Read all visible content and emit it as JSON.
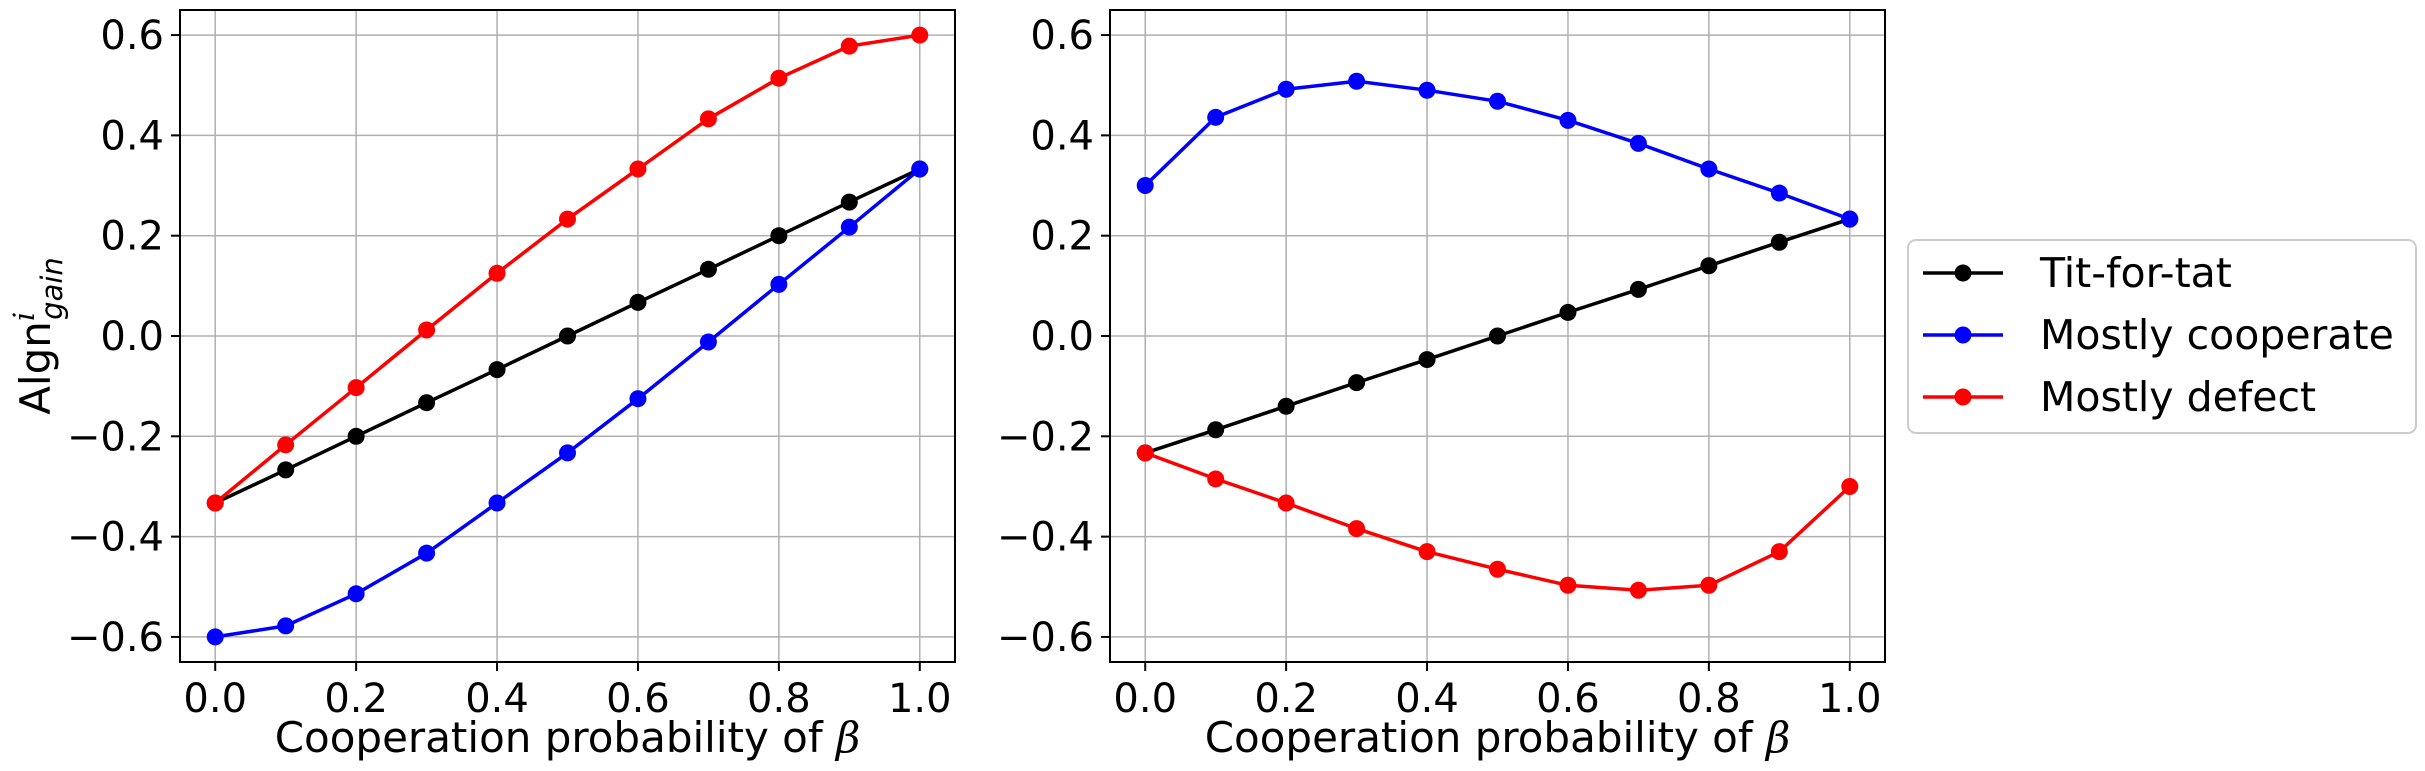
{
  "chart_data": [
    {
      "type": "line",
      "xlabel": "Cooperation probability of β",
      "ylabel": "Algn",
      "ylabel_sup": "i",
      "ylabel_sub": "gain",
      "xlim": [
        -0.05,
        1.05
      ],
      "ylim": [
        -0.65,
        0.65
      ],
      "xticks": [
        0.0,
        0.2,
        0.4,
        0.6,
        0.8,
        1.0
      ],
      "xtick_labels": [
        "0.0",
        "0.2",
        "0.4",
        "0.6",
        "0.8",
        "1.0"
      ],
      "yticks": [
        -0.6,
        -0.4,
        -0.2,
        0.0,
        0.2,
        0.4,
        0.6
      ],
      "ytick_labels": [
        "−0.6",
        "−0.4",
        "−0.2",
        "0.0",
        "0.2",
        "0.4",
        "0.6"
      ],
      "grid": true,
      "x": [
        0.0,
        0.1,
        0.2,
        0.3,
        0.4,
        0.5,
        0.6,
        0.7,
        0.8,
        0.9,
        1.0
      ],
      "series": [
        {
          "name": "Tit-for-tat",
          "color": "#000000",
          "values": [
            -0.333,
            -0.267,
            -0.2,
            -0.133,
            -0.067,
            0.0,
            0.067,
            0.133,
            0.2,
            0.267,
            0.333
          ]
        },
        {
          "name": "Mostly cooperate",
          "color": "#0000ff",
          "values": [
            -0.6,
            -0.578,
            -0.514,
            -0.433,
            -0.333,
            -0.233,
            -0.125,
            -0.012,
            0.103,
            0.217,
            0.333
          ]
        },
        {
          "name": "Mostly defect",
          "color": "#ff0000",
          "values": [
            -0.333,
            -0.217,
            -0.103,
            0.012,
            0.125,
            0.233,
            0.333,
            0.433,
            0.514,
            0.578,
            0.6
          ]
        }
      ]
    },
    {
      "type": "line",
      "xlabel": "Cooperation probability of β",
      "xlim": [
        -0.05,
        1.05
      ],
      "ylim": [
        -0.65,
        0.65
      ],
      "xticks": [
        0.0,
        0.2,
        0.4,
        0.6,
        0.8,
        1.0
      ],
      "xtick_labels": [
        "0.0",
        "0.2",
        "0.4",
        "0.6",
        "0.8",
        "1.0"
      ],
      "yticks": [
        -0.6,
        -0.4,
        -0.2,
        0.0,
        0.2,
        0.4,
        0.6
      ],
      "ytick_labels": [
        "−0.6",
        "−0.4",
        "−0.2",
        "0.0",
        "0.2",
        "0.4",
        "0.6"
      ],
      "grid": true,
      "legend_position": "outside-right",
      "x": [
        0.0,
        0.1,
        0.2,
        0.3,
        0.4,
        0.5,
        0.6,
        0.7,
        0.8,
        0.9,
        1.0
      ],
      "series": [
        {
          "name": "Tit-for-tat",
          "color": "#000000",
          "values": [
            -0.233,
            -0.187,
            -0.14,
            -0.093,
            -0.047,
            0.0,
            0.047,
            0.093,
            0.14,
            0.187,
            0.233
          ]
        },
        {
          "name": "Mostly cooperate",
          "color": "#0000ff",
          "values": [
            0.3,
            0.436,
            0.492,
            0.508,
            0.49,
            0.468,
            0.43,
            0.384,
            0.333,
            0.285,
            0.233
          ]
        },
        {
          "name": "Mostly defect",
          "color": "#ff0000",
          "values": [
            -0.233,
            -0.285,
            -0.333,
            -0.384,
            -0.43,
            -0.465,
            -0.497,
            -0.507,
            -0.497,
            -0.43,
            -0.3
          ]
        }
      ]
    }
  ],
  "legend": {
    "entries": [
      {
        "label": "Tit-for-tat",
        "color": "#000000"
      },
      {
        "label": "Mostly cooperate",
        "color": "#0000ff"
      },
      {
        "label": "Mostly defect",
        "color": "#ff0000"
      }
    ]
  }
}
